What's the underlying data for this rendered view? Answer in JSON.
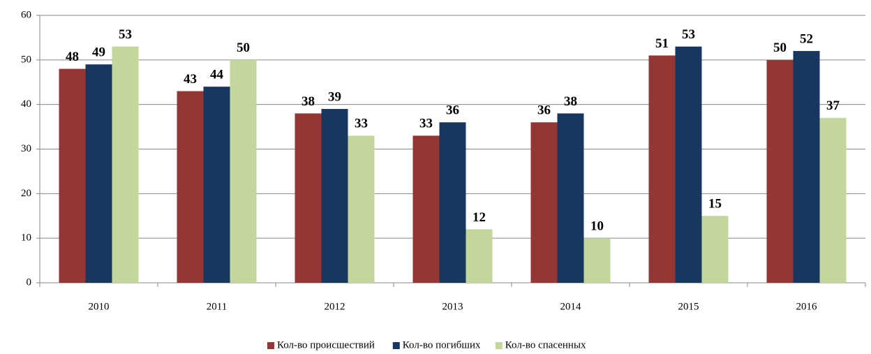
{
  "chart_data": {
    "type": "bar",
    "categories": [
      "2010",
      "2011",
      "2012",
      "2013",
      "2014",
      "2015",
      "2016"
    ],
    "series": [
      {
        "name": "Кол-во происшествий",
        "color": "#943634",
        "values": [
          48,
          43,
          38,
          33,
          36,
          51,
          50
        ]
      },
      {
        "name": "Кол-во погибших",
        "color": "#17375e",
        "values": [
          49,
          44,
          39,
          36,
          38,
          53,
          52
        ]
      },
      {
        "name": "Кол-во спасенных",
        "color": "#c3d69b",
        "values": [
          53,
          50,
          33,
          12,
          10,
          15,
          37
        ]
      }
    ],
    "ylim": [
      0,
      60
    ],
    "yticks": [
      0,
      10,
      20,
      30,
      40,
      50,
      60
    ],
    "grid": true,
    "legend": "bottom"
  }
}
